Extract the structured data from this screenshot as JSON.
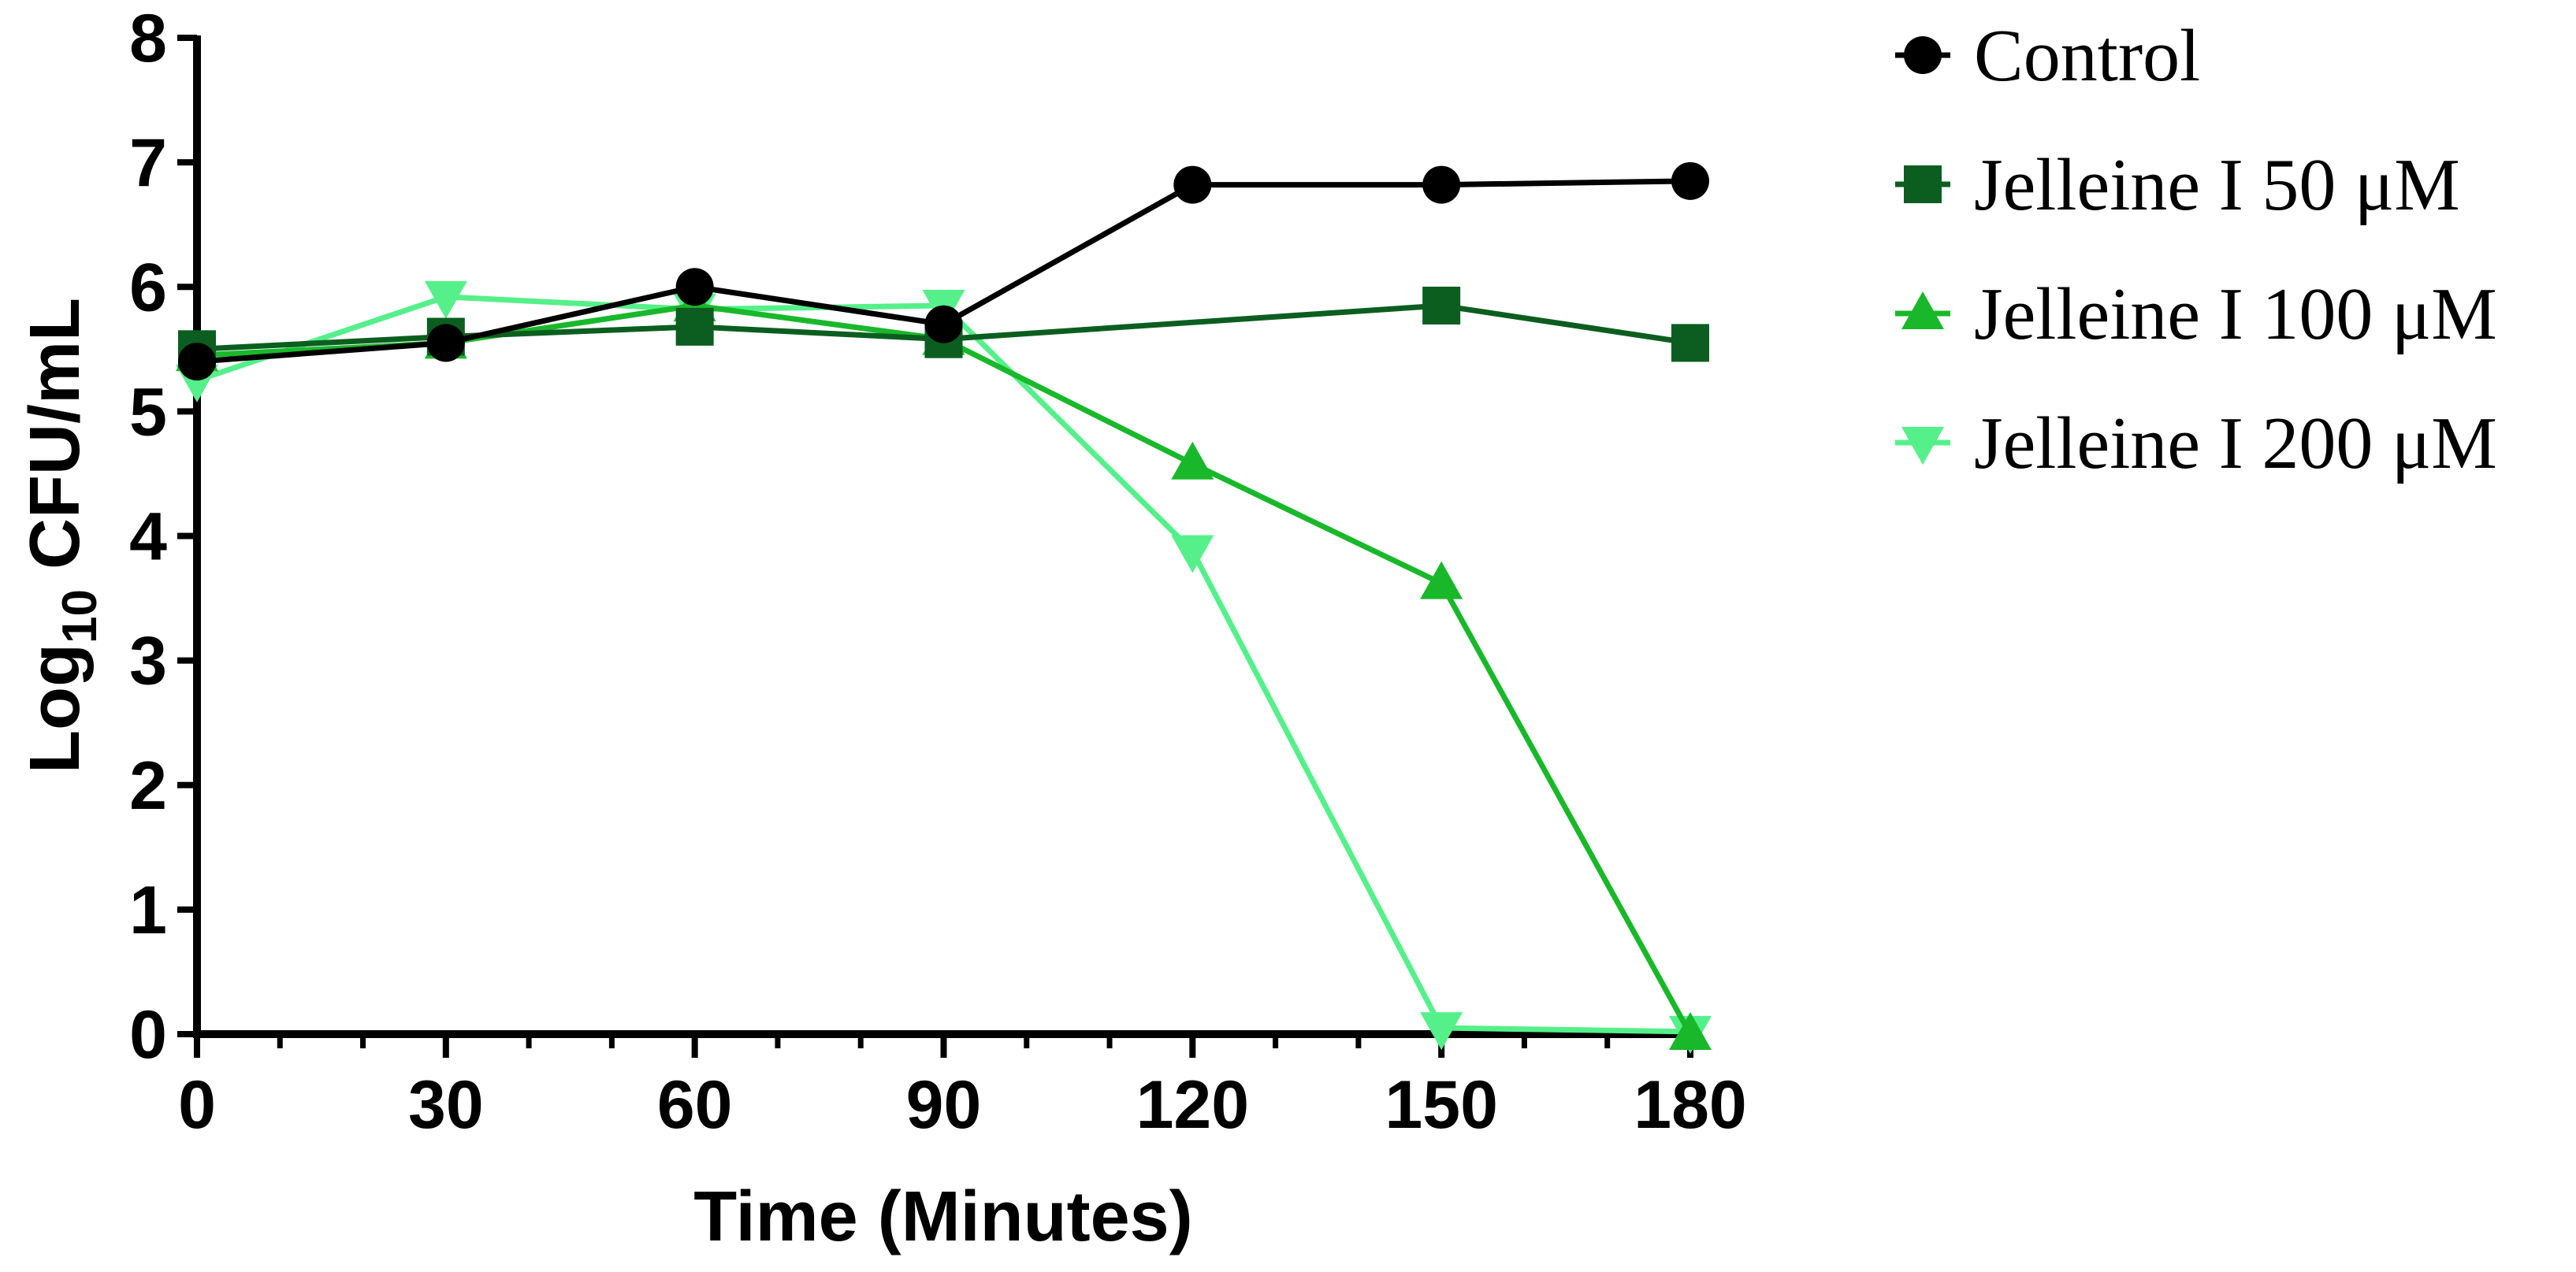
{
  "chart_data": {
    "type": "line",
    "title": "",
    "xlabel": "Time (Minutes)",
    "ylabel_main": "Log",
    "ylabel_sub": "10",
    "ylabel_rest": " CFU/mL",
    "x": [
      0,
      30,
      60,
      90,
      120,
      150,
      180
    ],
    "xticks": [
      "0",
      "30",
      "60",
      "90",
      "120",
      "150",
      "180"
    ],
    "yticks": [
      "0",
      "1",
      "2",
      "3",
      "4",
      "5",
      "6",
      "7",
      "8"
    ],
    "xlim": [
      0,
      180
    ],
    "ylim": [
      0,
      8
    ],
    "legend_position": "top-right-outside",
    "series": [
      {
        "name": "Control",
        "marker": "circle",
        "color": "#000000",
        "values": [
          5.4,
          5.55,
          6.0,
          5.7,
          6.82,
          6.82,
          6.85
        ]
      },
      {
        "name": "Jelleine I 50 μM",
        "marker": "square",
        "color": "#0b5e1f",
        "values": [
          5.5,
          5.6,
          5.68,
          5.58,
          null,
          5.85,
          5.55
        ]
      },
      {
        "name": "Jelleine I 100 μM",
        "marker": "triangle-up",
        "color": "#19b82a",
        "values": [
          5.45,
          5.55,
          5.85,
          5.58,
          4.58,
          3.62,
          0.0
        ]
      },
      {
        "name": "Jelleine I 200 μM",
        "marker": "triangle-down",
        "color": "#55f08a",
        "values": [
          5.25,
          5.92,
          5.82,
          5.85,
          3.88,
          0.05,
          0.02
        ]
      }
    ]
  }
}
